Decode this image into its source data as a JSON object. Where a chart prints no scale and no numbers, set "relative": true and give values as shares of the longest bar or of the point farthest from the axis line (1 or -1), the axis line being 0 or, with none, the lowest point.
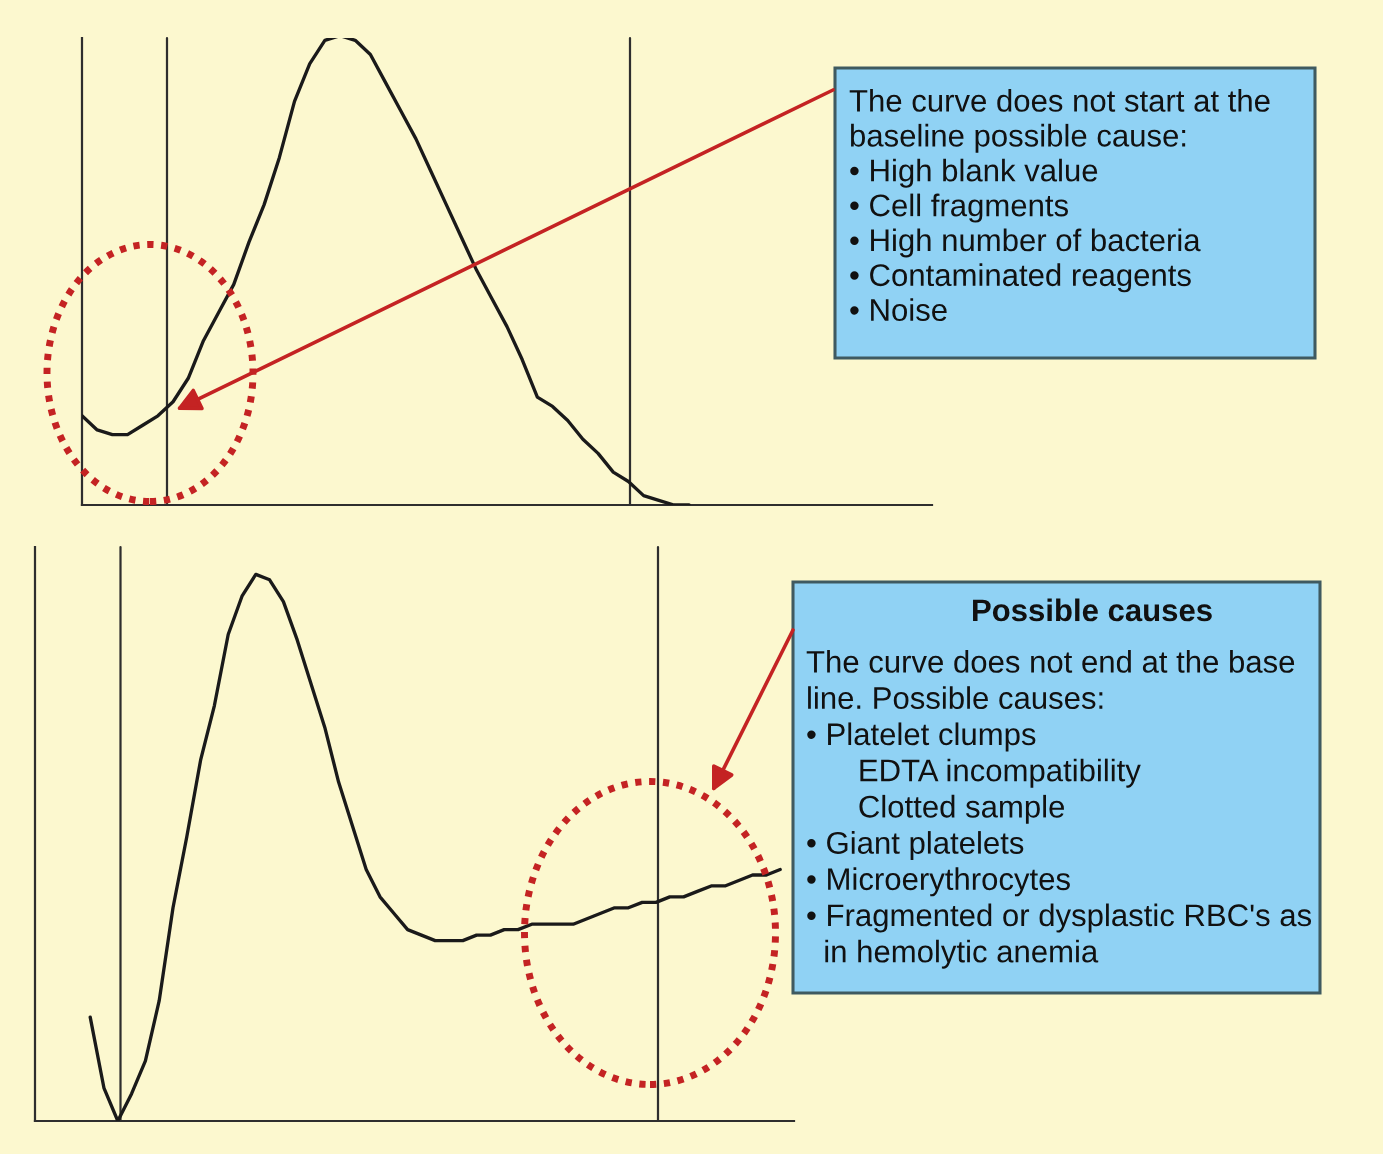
{
  "chart_data": [
    {
      "type": "line",
      "relative": true,
      "categories": [
        null,
        null,
        null,
        null,
        null,
        null,
        null,
        null,
        null,
        null,
        null,
        null,
        null,
        null,
        null,
        null,
        null,
        null,
        null,
        null,
        null,
        null,
        null,
        null,
        null,
        null,
        null,
        null,
        null,
        null,
        null,
        null,
        null,
        null,
        null,
        null,
        null,
        null,
        null,
        null,
        null,
        null,
        null,
        null,
        null,
        null,
        null,
        null,
        null,
        null,
        null,
        null,
        null,
        null,
        null,
        null,
        null
      ],
      "series": [
        {
          "color": "#1a1a1a",
          "values": [
            0.19,
            0.16,
            0.15,
            0.15,
            0.17,
            0.19,
            0.22,
            0.27,
            0.35,
            0.41,
            0.47,
            0.56,
            0.64,
            0.74,
            0.86,
            0.94,
            0.99,
            1.0,
            0.99,
            0.96,
            0.9,
            0.84,
            0.78,
            0.71,
            0.64,
            0.57,
            0.5,
            0.44,
            0.38,
            0.31,
            0.23,
            0.21,
            0.18,
            0.14,
            0.11,
            0.07,
            0.05,
            0.02,
            0.01,
            0.0,
            0.0,
            null,
            null,
            null,
            null,
            null,
            null,
            null,
            null,
            null,
            null,
            null,
            null,
            null,
            null,
            null,
            null
          ]
        }
      ],
      "annotations": [
        "The curve does not start at the\nbaseline possible cause:\n• High blank value\n• Cell fragments\n• High number of bacteria\n• Contaminated reagents\n• Noise"
      ]
    },
    {
      "type": "line",
      "relative": true,
      "categories": [
        null,
        null,
        null,
        null,
        null,
        null,
        null,
        null,
        null,
        null,
        null,
        null,
        null,
        null,
        null,
        null,
        null,
        null,
        null,
        null,
        null,
        null,
        null,
        null,
        null,
        null,
        null,
        null,
        null,
        null,
        null,
        null,
        null,
        null,
        null,
        null,
        null,
        null,
        null,
        null,
        null,
        null,
        null,
        null,
        null,
        null,
        null,
        null,
        null,
        null,
        null,
        null,
        null,
        null,
        null,
        null
      ],
      "series": [
        {
          "color": "#1a1a1a",
          "values": [
            null,
            null,
            null,
            null,
            0.19,
            0.06,
            0.0,
            0.05,
            0.11,
            0.22,
            0.39,
            0.52,
            0.66,
            0.76,
            0.89,
            0.96,
            1.0,
            0.99,
            0.95,
            0.88,
            0.8,
            0.72,
            0.62,
            0.54,
            0.46,
            0.41,
            0.38,
            0.35,
            0.34,
            0.33,
            0.33,
            0.33,
            0.34,
            0.34,
            0.35,
            0.35,
            0.36,
            0.36,
            0.36,
            0.36,
            0.37,
            0.38,
            0.39,
            0.39,
            0.4,
            0.4,
            0.41,
            0.41,
            0.42,
            0.43,
            0.43,
            0.44,
            0.45,
            0.45,
            0.46,
            null
          ]
        }
      ],
      "annotations": [
        "Possible causes",
        "The curve does not end at the base\nline. Possible causes:\n• Platelet clumps\n      EDTA incompatibility\n      Clotted sample\n• Giant platelets\n• Microerythrocytes\n• Fragmented or dysplastic RBC's as\n  in hemolytic anemia"
      ]
    }
  ]
}
